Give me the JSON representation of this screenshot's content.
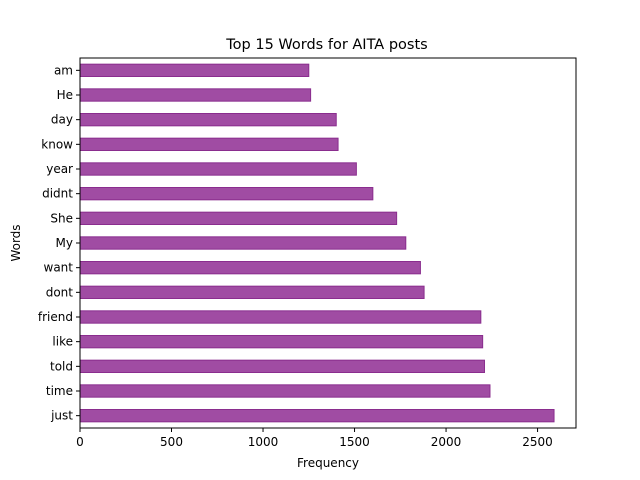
{
  "chart_data": {
    "type": "bar",
    "orientation": "horizontal",
    "title": "Top 15 Words for AITA posts",
    "xlabel": "Frequency",
    "ylabel": "Words",
    "categories": [
      "just",
      "time",
      "told",
      "like",
      "friend",
      "dont",
      "want",
      "My",
      "She",
      "didnt",
      "year",
      "know",
      "day",
      "He",
      "am"
    ],
    "values": [
      2590,
      2240,
      2210,
      2200,
      2190,
      1880,
      1860,
      1780,
      1730,
      1600,
      1510,
      1410,
      1400,
      1260,
      1250
    ],
    "xlim": [
      0,
      2710
    ],
    "xticks": [
      0,
      500,
      1000,
      1500,
      2000,
      2500
    ],
    "bar_color": "#a04ca3",
    "grid": false,
    "legend": "none"
  }
}
